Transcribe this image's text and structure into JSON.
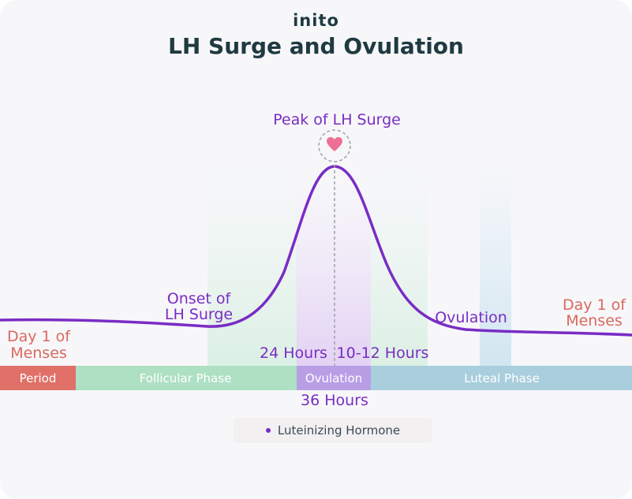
{
  "brand": {
    "logo_text": "inito"
  },
  "title": "LH Surge and Ovulation",
  "annotations": {
    "peak": "Peak of LH Surge",
    "onset_line1": "Onset of",
    "onset_line2": "LH Surge",
    "ovulation": "Ovulation",
    "day1_left_line1": "Day 1 of",
    "day1_left_line2": "Menses",
    "day1_right_line1": "Day 1 of",
    "day1_right_line2": "Menses",
    "hours_24": "24 Hours",
    "hours_10_12": "10-12 Hours",
    "hours_36": "36 Hours"
  },
  "phases": [
    {
      "label": "Period",
      "color": "#e07068"
    },
    {
      "label": "Follicular Phase",
      "color": "#aee0c4"
    },
    {
      "label": "Ovulation",
      "color": "#b99ee6"
    },
    {
      "label": "Luteal Phase",
      "color": "#a9cedd"
    }
  ],
  "legend": {
    "label": "Luteinizing Hormone",
    "color": "#7a2cc4"
  },
  "colors": {
    "curve": "#7a2cc4",
    "title": "#1f3a40",
    "salmon_text": "#d9695c",
    "heart": "#ee6f95"
  }
}
